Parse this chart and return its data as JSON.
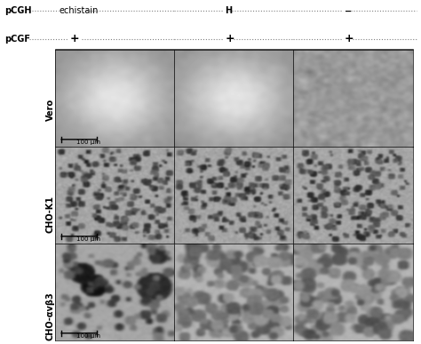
{
  "header_line1": "pCGH",
  "header_line1_items": [
    "echistain",
    "H",
    "−"
  ],
  "header_line2": "pCGF",
  "header_line2_items": [
    "+",
    "+",
    "+"
  ],
  "row_labels": [
    "Vero",
    "CHO-K1",
    "CHO-αvβ3"
  ],
  "scale_label": "100 μm",
  "bg_color": "#ffffff",
  "border_color": "#000000",
  "text_color": "#000000",
  "grid_rows": 3,
  "grid_cols": 3,
  "fig_width": 4.74,
  "fig_height": 3.87,
  "dpi": 100
}
